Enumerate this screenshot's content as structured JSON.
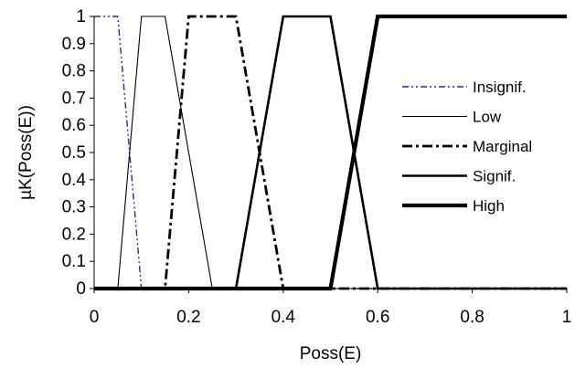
{
  "chart_data": {
    "type": "line",
    "title": "",
    "xlabel": "Poss(E)",
    "ylabel": "µK(Poss(E))",
    "xlim": [
      0,
      1
    ],
    "ylim": [
      0,
      1
    ],
    "x_ticks": [
      0,
      0.2,
      0.4,
      0.6,
      0.8,
      1
    ],
    "x_tick_labels": [
      "0",
      "0.2",
      "0.4",
      "0.6",
      "0.8",
      "1"
    ],
    "y_ticks": [
      0,
      0.1,
      0.2,
      0.3,
      0.4,
      0.5,
      0.6,
      0.7,
      0.8,
      0.9,
      1
    ],
    "y_tick_labels": [
      "0",
      "0.1",
      "0.2",
      "0.3",
      "0.4",
      "0.5",
      "0.6",
      "0.7",
      "0.8",
      "0.9",
      "1"
    ],
    "grid": false,
    "legend_position": "right",
    "series": [
      {
        "name": "Insignif.",
        "style": "dash-dot-dot",
        "color": "#1f2f8f",
        "points": [
          [
            0,
            1
          ],
          [
            0.05,
            1
          ],
          [
            0.1,
            0
          ],
          [
            1,
            0
          ]
        ]
      },
      {
        "name": "Low",
        "style": "solid-thin",
        "color": "#000000",
        "points": [
          [
            0,
            0
          ],
          [
            0.05,
            0
          ],
          [
            0.1,
            1
          ],
          [
            0.15,
            1
          ],
          [
            0.25,
            0
          ],
          [
            1,
            0
          ]
        ]
      },
      {
        "name": "Marginal",
        "style": "dash-dot",
        "color": "#000000",
        "points": [
          [
            0,
            0
          ],
          [
            0.15,
            0
          ],
          [
            0.2,
            1
          ],
          [
            0.3,
            1
          ],
          [
            0.4,
            0
          ],
          [
            1,
            0
          ]
        ]
      },
      {
        "name": "Signif.",
        "style": "solid-medium",
        "color": "#000000",
        "points": [
          [
            0,
            0
          ],
          [
            0.3,
            0
          ],
          [
            0.4,
            1
          ],
          [
            0.5,
            1
          ],
          [
            0.6,
            0
          ],
          [
            1,
            0
          ]
        ]
      },
      {
        "name": "High",
        "style": "solid-thick",
        "color": "#000000",
        "points": [
          [
            0,
            0
          ],
          [
            0.5,
            0
          ],
          [
            0.6,
            1
          ],
          [
            1,
            1
          ]
        ]
      }
    ]
  }
}
